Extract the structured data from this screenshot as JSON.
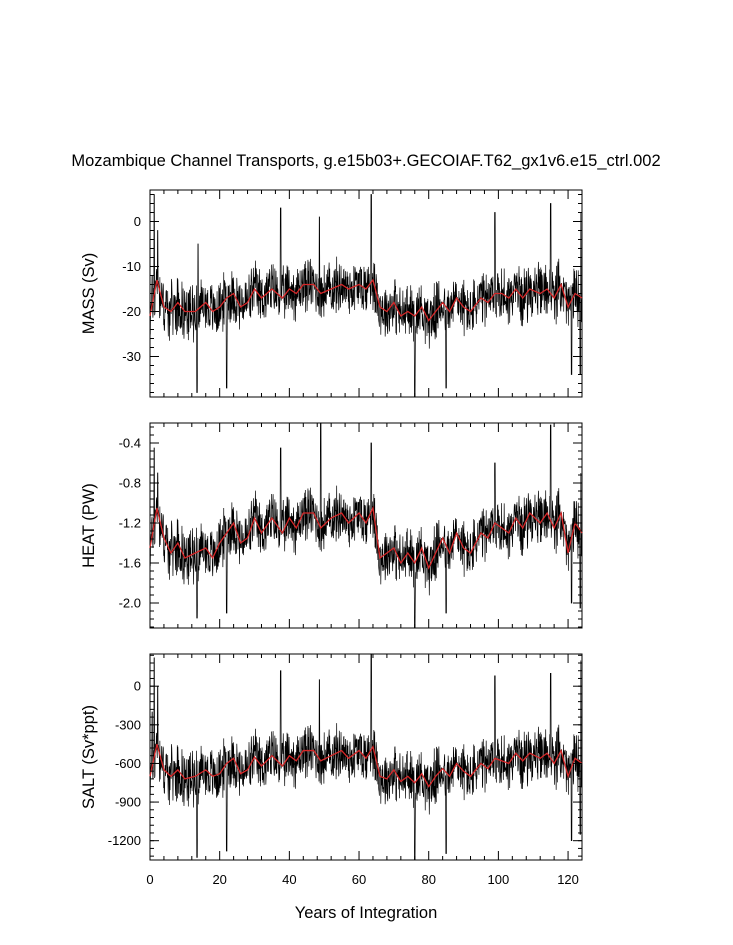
{
  "title": "Mozambique Channel Transports, g.e15b03+.GECOIAF.T62_gx1v6.e15_ctrl.002",
  "xlabel": "Years of Integration",
  "x_ticks": [
    "0",
    "20",
    "40",
    "60",
    "80",
    "100",
    "120"
  ],
  "colors": {
    "raw": "#000000",
    "smoothed": "#d62728",
    "frame": "#000000"
  },
  "chart_data": [
    {
      "type": "line",
      "ylabel": "MASS (Sv)",
      "xlim": [
        0,
        124
      ],
      "ylim": [
        -39,
        7
      ],
      "y_ticks": [
        "0",
        "-10",
        "-20",
        "-30"
      ],
      "y_tick_values": [
        0,
        -10,
        -20,
        -30
      ],
      "smoothed": [
        [
          0,
          -21
        ],
        [
          2,
          -13
        ],
        [
          4,
          -19
        ],
        [
          6,
          -20
        ],
        [
          8,
          -18
        ],
        [
          10,
          -20
        ],
        [
          13,
          -20
        ],
        [
          16,
          -18
        ],
        [
          18,
          -20
        ],
        [
          20,
          -19
        ],
        [
          22,
          -17
        ],
        [
          24,
          -16
        ],
        [
          26,
          -19
        ],
        [
          28,
          -18
        ],
        [
          30,
          -15
        ],
        [
          32,
          -17
        ],
        [
          35,
          -15
        ],
        [
          38,
          -17
        ],
        [
          40,
          -15
        ],
        [
          42,
          -16
        ],
        [
          44,
          -14
        ],
        [
          47,
          -14
        ],
        [
          49,
          -16
        ],
        [
          52,
          -15
        ],
        [
          55,
          -14
        ],
        [
          57,
          -15
        ],
        [
          60,
          -14
        ],
        [
          62,
          -15
        ],
        [
          64,
          -13
        ],
        [
          66,
          -19
        ],
        [
          68,
          -20
        ],
        [
          70,
          -18
        ],
        [
          72,
          -21
        ],
        [
          74,
          -20
        ],
        [
          76,
          -21
        ],
        [
          78,
          -19
        ],
        [
          80,
          -22
        ],
        [
          82,
          -20
        ],
        [
          84,
          -18
        ],
        [
          86,
          -20
        ],
        [
          88,
          -17
        ],
        [
          90,
          -19
        ],
        [
          92,
          -20
        ],
        [
          95,
          -17
        ],
        [
          97,
          -18
        ],
        [
          99,
          -16
        ],
        [
          101,
          -16
        ],
        [
          103,
          -17
        ],
        [
          105,
          -15
        ],
        [
          107,
          -17
        ],
        [
          109,
          -15
        ],
        [
          112,
          -16
        ],
        [
          114,
          -15
        ],
        [
          116,
          -17
        ],
        [
          118,
          -14
        ],
        [
          120,
          -19
        ],
        [
          122,
          -16
        ],
        [
          124,
          -17
        ]
      ],
      "raw_peaks_max": [
        [
          0.6,
          -12
        ],
        [
          1.2,
          6
        ],
        [
          2.2,
          -2
        ],
        [
          13.8,
          -5
        ],
        [
          37.5,
          3
        ],
        [
          48.6,
          1
        ],
        [
          63.5,
          6
        ],
        [
          99,
          2
        ],
        [
          115,
          4
        ],
        [
          123.6,
          2
        ]
      ],
      "raw_peaks_min": [
        [
          13.5,
          -38
        ],
        [
          22,
          -37
        ],
        [
          76,
          -39
        ],
        [
          85,
          -37
        ],
        [
          121,
          -34
        ],
        [
          123.5,
          -34
        ]
      ]
    },
    {
      "type": "line",
      "ylabel": "HEAT (PW)",
      "xlim": [
        0,
        124
      ],
      "ylim": [
        -2.25,
        -0.2
      ],
      "y_ticks": [
        "-0.4",
        "-0.8",
        "-1.2",
        "-1.6",
        "-2.0"
      ],
      "y_tick_values": [
        -0.4,
        -0.8,
        -1.2,
        -1.6,
        -2.0
      ],
      "smoothed": [
        [
          0,
          -1.45
        ],
        [
          2,
          -1.05
        ],
        [
          4,
          -1.35
        ],
        [
          6,
          -1.5
        ],
        [
          8,
          -1.4
        ],
        [
          10,
          -1.55
        ],
        [
          13,
          -1.5
        ],
        [
          16,
          -1.45
        ],
        [
          18,
          -1.55
        ],
        [
          20,
          -1.4
        ],
        [
          22,
          -1.3
        ],
        [
          24,
          -1.2
        ],
        [
          26,
          -1.4
        ],
        [
          28,
          -1.35
        ],
        [
          30,
          -1.15
        ],
        [
          32,
          -1.3
        ],
        [
          35,
          -1.15
        ],
        [
          38,
          -1.3
        ],
        [
          40,
          -1.15
        ],
        [
          42,
          -1.25
        ],
        [
          44,
          -1.1
        ],
        [
          47,
          -1.1
        ],
        [
          49,
          -1.25
        ],
        [
          52,
          -1.15
        ],
        [
          55,
          -1.1
        ],
        [
          57,
          -1.2
        ],
        [
          60,
          -1.1
        ],
        [
          62,
          -1.2
        ],
        [
          64,
          -1.05
        ],
        [
          66,
          -1.55
        ],
        [
          68,
          -1.5
        ],
        [
          70,
          -1.45
        ],
        [
          72,
          -1.6
        ],
        [
          74,
          -1.5
        ],
        [
          76,
          -1.6
        ],
        [
          78,
          -1.45
        ],
        [
          80,
          -1.65
        ],
        [
          82,
          -1.5
        ],
        [
          84,
          -1.35
        ],
        [
          86,
          -1.5
        ],
        [
          88,
          -1.3
        ],
        [
          90,
          -1.45
        ],
        [
          92,
          -1.5
        ],
        [
          95,
          -1.3
        ],
        [
          97,
          -1.35
        ],
        [
          99,
          -1.2
        ],
        [
          101,
          -1.25
        ],
        [
          103,
          -1.3
        ],
        [
          105,
          -1.15
        ],
        [
          107,
          -1.25
        ],
        [
          109,
          -1.1
        ],
        [
          112,
          -1.2
        ],
        [
          114,
          -1.1
        ],
        [
          116,
          -1.25
        ],
        [
          118,
          -1.1
        ],
        [
          120,
          -1.5
        ],
        [
          122,
          -1.2
        ],
        [
          124,
          -1.3
        ]
      ],
      "raw_peaks_max": [
        [
          1.2,
          -0.45
        ],
        [
          2.2,
          -0.7
        ],
        [
          37.5,
          -0.45
        ],
        [
          49,
          -0.2
        ],
        [
          63.5,
          -0.4
        ],
        [
          99,
          -0.6
        ],
        [
          115,
          -0.22
        ],
        [
          123.6,
          -0.7
        ]
      ],
      "raw_peaks_min": [
        [
          13.5,
          -2.15
        ],
        [
          22,
          -2.1
        ],
        [
          76,
          -2.25
        ],
        [
          85,
          -2.1
        ],
        [
          121,
          -2.0
        ],
        [
          123.5,
          -2.05
        ]
      ]
    },
    {
      "type": "line",
      "ylabel": "SALT (Sv*ppt)",
      "xlim": [
        0,
        124
      ],
      "ylim": [
        -1350,
        250
      ],
      "y_ticks": [
        "0",
        "-300",
        "-600",
        "-900",
        "-1200"
      ],
      "y_tick_values": [
        0,
        -300,
        -600,
        -900,
        -1200
      ],
      "smoothed": [
        [
          0,
          -700
        ],
        [
          2,
          -450
        ],
        [
          4,
          -650
        ],
        [
          6,
          -700
        ],
        [
          8,
          -650
        ],
        [
          10,
          -720
        ],
        [
          13,
          -700
        ],
        [
          16,
          -650
        ],
        [
          18,
          -700
        ],
        [
          20,
          -680
        ],
        [
          22,
          -600
        ],
        [
          24,
          -560
        ],
        [
          26,
          -680
        ],
        [
          28,
          -650
        ],
        [
          30,
          -550
        ],
        [
          32,
          -620
        ],
        [
          35,
          -540
        ],
        [
          38,
          -620
        ],
        [
          40,
          -540
        ],
        [
          42,
          -580
        ],
        [
          44,
          -500
        ],
        [
          47,
          -500
        ],
        [
          49,
          -580
        ],
        [
          52,
          -540
        ],
        [
          55,
          -500
        ],
        [
          57,
          -560
        ],
        [
          60,
          -500
        ],
        [
          62,
          -560
        ],
        [
          64,
          -470
        ],
        [
          66,
          -700
        ],
        [
          68,
          -720
        ],
        [
          70,
          -650
        ],
        [
          72,
          -740
        ],
        [
          74,
          -700
        ],
        [
          76,
          -750
        ],
        [
          78,
          -680
        ],
        [
          80,
          -780
        ],
        [
          82,
          -700
        ],
        [
          84,
          -640
        ],
        [
          86,
          -700
        ],
        [
          88,
          -600
        ],
        [
          90,
          -660
        ],
        [
          92,
          -700
        ],
        [
          95,
          -600
        ],
        [
          97,
          -640
        ],
        [
          99,
          -560
        ],
        [
          101,
          -580
        ],
        [
          103,
          -600
        ],
        [
          105,
          -520
        ],
        [
          107,
          -580
        ],
        [
          109,
          -520
        ],
        [
          112,
          -560
        ],
        [
          114,
          -520
        ],
        [
          116,
          -600
        ],
        [
          118,
          -500
        ],
        [
          120,
          -700
        ],
        [
          122,
          -560
        ],
        [
          124,
          -600
        ]
      ],
      "raw_peaks_max": [
        [
          0.6,
          -200
        ],
        [
          1.2,
          220
        ],
        [
          2.2,
          0
        ],
        [
          37.5,
          120
        ],
        [
          48.6,
          50
        ],
        [
          63.5,
          250
        ],
        [
          99,
          80
        ],
        [
          115,
          100
        ],
        [
          123.6,
          200
        ]
      ],
      "raw_peaks_min": [
        [
          13.5,
          -1330
        ],
        [
          22,
          -1280
        ],
        [
          76,
          -1350
        ],
        [
          85,
          -1300
        ],
        [
          121,
          -1200
        ],
        [
          123.5,
          -1150
        ]
      ]
    }
  ]
}
